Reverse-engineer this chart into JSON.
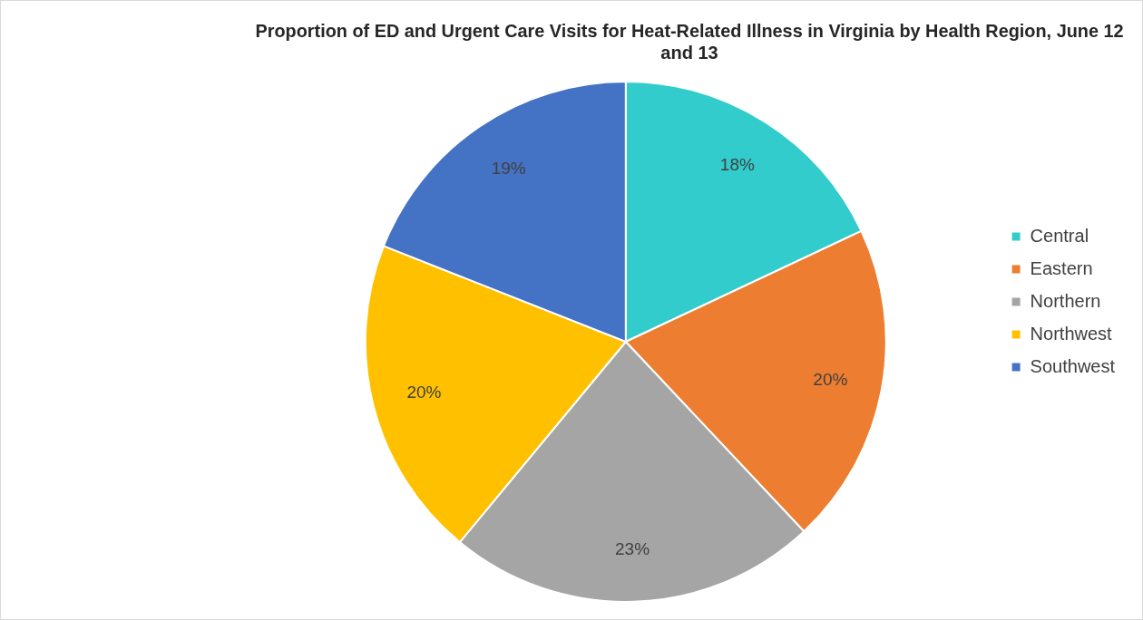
{
  "chart_data": {
    "type": "pie",
    "title": "Proportion of ED and Urgent Care Visits for Heat-Related Illness in Virginia by Health Region, June 12 and 13",
    "categories": [
      "Central",
      "Eastern",
      "Northern",
      "Northwest",
      "Southwest"
    ],
    "values": [
      18,
      20,
      23,
      20,
      19
    ],
    "value_labels": [
      "18%",
      "20%",
      "23%",
      "20%",
      "19%"
    ],
    "colors": [
      "#33cccc",
      "#ed7d31",
      "#a5a5a5",
      "#ffc000",
      "#4472c4"
    ],
    "legend": "right"
  }
}
